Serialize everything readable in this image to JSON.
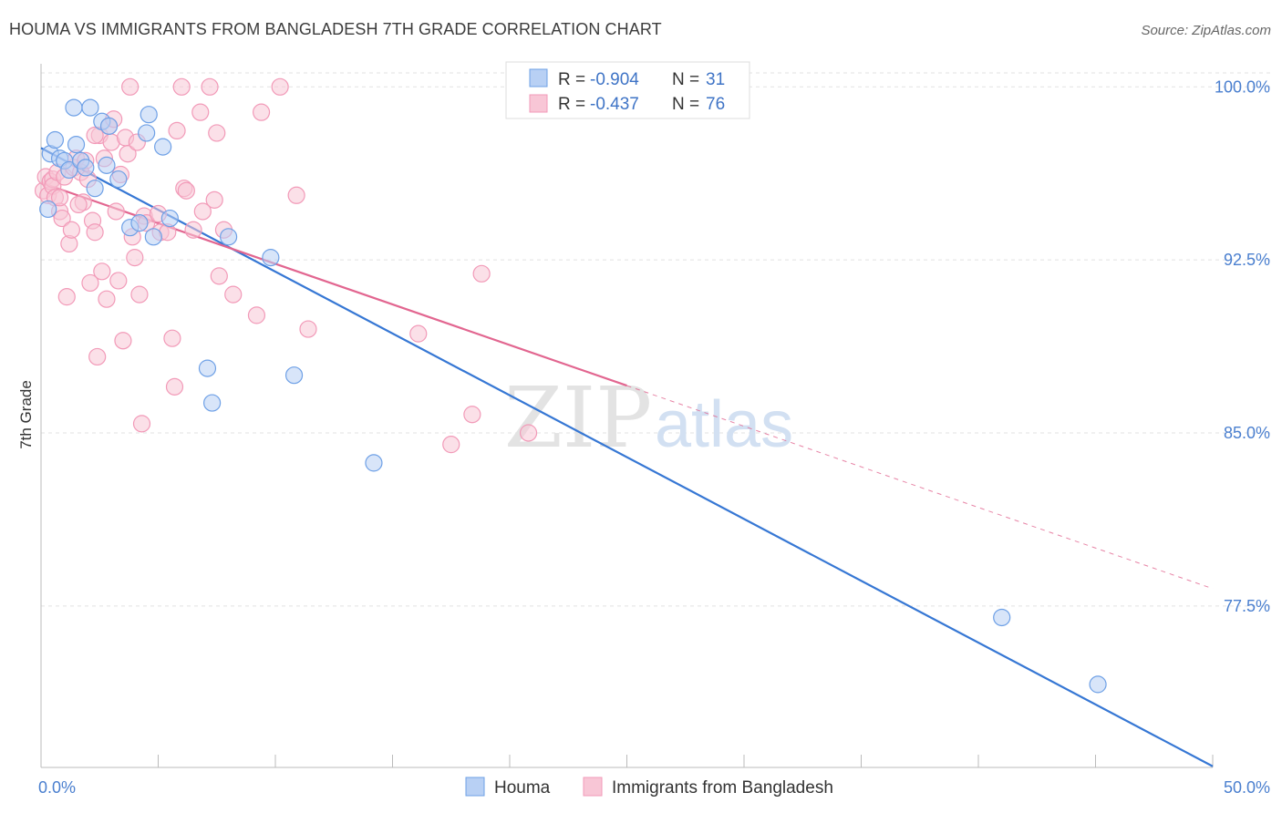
{
  "title": "HOUMA VS IMMIGRANTS FROM BANGLADESH 7TH GRADE CORRELATION CHART",
  "source": "Source: ZipAtlas.com",
  "watermark": {
    "zip": "ZIP",
    "atlas": "atlas"
  },
  "chart_data": {
    "type": "scatter",
    "title": "HOUMA VS IMMIGRANTS FROM BANGLADESH 7TH GRADE CORRELATION CHART",
    "xlabel": "",
    "ylabel": "7th Grade",
    "xlim": [
      0,
      50
    ],
    "ylim": [
      70.5,
      101.0
    ],
    "x_tick_labels": [
      {
        "value": 0,
        "label": "0.0%"
      },
      {
        "value": 50,
        "label": "50.0%"
      }
    ],
    "x_tick_marks": [
      0,
      5,
      10,
      15,
      20,
      25,
      30,
      35,
      40,
      45,
      50
    ],
    "y_ticks": [
      {
        "value": 100.0,
        "label": "100.0%"
      },
      {
        "value": 92.5,
        "label": "92.5%"
      },
      {
        "value": 85.0,
        "label": "85.0%"
      },
      {
        "value": 77.5,
        "label": "77.5%"
      }
    ],
    "grid": true,
    "legend_placement": "top-center",
    "series": [
      {
        "name": "Houma",
        "color": "#6ea0e6",
        "fill": "#b8d0f4",
        "line_color": "#3677d4",
        "r_label": "R = ",
        "r": "-0.904",
        "n_label": "N = ",
        "n": "31",
        "trend": {
          "x1": 0.0,
          "y1": 97.35,
          "x2": 50.0,
          "y2": 70.55
        },
        "points": [
          [
            0.3,
            94.7
          ],
          [
            0.4,
            97.1
          ],
          [
            0.6,
            97.7
          ],
          [
            0.8,
            96.9
          ],
          [
            1.0,
            96.8
          ],
          [
            1.2,
            96.4
          ],
          [
            1.4,
            99.1
          ],
          [
            1.5,
            97.5
          ],
          [
            1.7,
            96.8
          ],
          [
            1.9,
            96.5
          ],
          [
            2.1,
            99.1
          ],
          [
            2.3,
            95.6
          ],
          [
            2.6,
            98.5
          ],
          [
            2.8,
            96.6
          ],
          [
            3.3,
            96.0
          ],
          [
            3.8,
            93.9
          ],
          [
            4.2,
            94.1
          ],
          [
            4.5,
            98.0
          ],
          [
            4.6,
            98.8
          ],
          [
            4.8,
            93.5
          ],
          [
            5.2,
            97.4
          ],
          [
            5.5,
            94.3
          ],
          [
            7.1,
            87.8
          ],
          [
            7.3,
            86.3
          ],
          [
            8.0,
            93.5
          ],
          [
            9.8,
            92.6
          ],
          [
            10.8,
            87.5
          ],
          [
            14.2,
            83.7
          ],
          [
            41.0,
            77.0
          ],
          [
            45.1,
            74.1
          ],
          [
            2.9,
            98.3
          ]
        ]
      },
      {
        "name": "Immigrants from Bangladesh",
        "color": "#f29ab8",
        "fill": "#f8c6d6",
        "line_color": "#e26690",
        "r_label": "R = ",
        "r": "-0.437",
        "n_label": "N = ",
        "n": "76",
        "trend": {
          "x1": 0.0,
          "y1": 95.85,
          "x2": 25.0,
          "y2": 87.05
        },
        "trend_ext": {
          "x1": 25.0,
          "y1": 87.05,
          "x2": 50.0,
          "y2": 78.25
        },
        "points": [
          [
            0.1,
            95.5
          ],
          [
            0.2,
            96.1
          ],
          [
            0.3,
            95.3
          ],
          [
            0.4,
            95.9
          ],
          [
            0.5,
            96.0
          ],
          [
            0.5,
            95.7
          ],
          [
            0.6,
            95.2
          ],
          [
            0.7,
            96.3
          ],
          [
            0.8,
            94.6
          ],
          [
            0.9,
            94.3
          ],
          [
            1.0,
            96.1
          ],
          [
            1.1,
            90.9
          ],
          [
            1.2,
            93.2
          ],
          [
            1.3,
            93.8
          ],
          [
            1.4,
            96.5
          ],
          [
            1.5,
            96.9
          ],
          [
            1.7,
            96.3
          ],
          [
            1.8,
            95.0
          ],
          [
            1.9,
            96.8
          ],
          [
            2.0,
            96.0
          ],
          [
            2.1,
            91.5
          ],
          [
            2.2,
            94.2
          ],
          [
            2.3,
            93.7
          ],
          [
            2.4,
            88.3
          ],
          [
            2.5,
            97.9
          ],
          [
            2.6,
            92.0
          ],
          [
            2.7,
            96.9
          ],
          [
            2.8,
            90.8
          ],
          [
            2.9,
            98.3
          ],
          [
            3.0,
            97.6
          ],
          [
            3.1,
            98.6
          ],
          [
            3.2,
            94.6
          ],
          [
            3.3,
            91.6
          ],
          [
            3.4,
            96.2
          ],
          [
            3.5,
            89.0
          ],
          [
            3.6,
            97.8
          ],
          [
            3.7,
            97.1
          ],
          [
            3.8,
            100.0
          ],
          [
            4.0,
            92.6
          ],
          [
            4.1,
            97.6
          ],
          [
            4.2,
            91.0
          ],
          [
            4.3,
            85.4
          ],
          [
            4.4,
            94.4
          ],
          [
            4.5,
            94.1
          ],
          [
            5.0,
            94.5
          ],
          [
            5.1,
            93.7
          ],
          [
            5.6,
            89.1
          ],
          [
            5.7,
            87.0
          ],
          [
            5.8,
            98.1
          ],
          [
            6.0,
            100.0
          ],
          [
            6.1,
            95.6
          ],
          [
            6.2,
            95.5
          ],
          [
            6.5,
            93.8
          ],
          [
            6.8,
            98.9
          ],
          [
            6.9,
            94.6
          ],
          [
            7.2,
            100.0
          ],
          [
            7.4,
            95.1
          ],
          [
            7.5,
            98.0
          ],
          [
            7.6,
            91.8
          ],
          [
            7.8,
            93.8
          ],
          [
            8.2,
            91.0
          ],
          [
            9.2,
            90.1
          ],
          [
            9.4,
            98.9
          ],
          [
            10.2,
            100.0
          ],
          [
            10.9,
            95.3
          ],
          [
            11.4,
            89.5
          ],
          [
            16.1,
            89.3
          ],
          [
            17.5,
            84.5
          ],
          [
            18.4,
            85.8
          ],
          [
            18.8,
            91.9
          ],
          [
            20.8,
            85.0
          ],
          [
            1.6,
            94.9
          ],
          [
            0.8,
            95.2
          ],
          [
            2.3,
            97.9
          ],
          [
            5.4,
            93.7
          ],
          [
            3.9,
            93.5
          ]
        ]
      }
    ]
  }
}
